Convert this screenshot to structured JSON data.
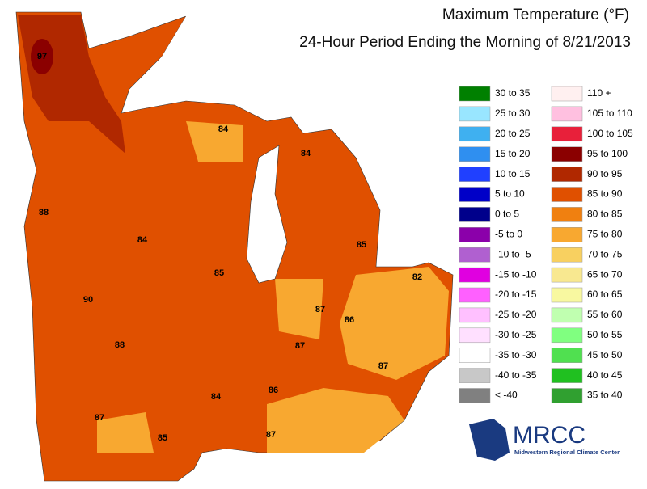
{
  "title": "Maximum Temperature (°F)",
  "subtitle": "24-Hour Period Ending the Morning of 8/21/2013",
  "legend": [
    {
      "label": "30 to 35",
      "color": "#008000"
    },
    {
      "label": "25 to 30",
      "color": "#99e6ff"
    },
    {
      "label": "20 to 25",
      "color": "#3fb0f0"
    },
    {
      "label": "15 to 20",
      "color": "#2f8ff0"
    },
    {
      "label": "10 to 15",
      "color": "#2040ff"
    },
    {
      "label": "5 to 10",
      "color": "#0000c8"
    },
    {
      "label": "0 to 5",
      "color": "#00008b"
    },
    {
      "label": "-5 to 0",
      "color": "#8b00aa"
    },
    {
      "label": "-10 to -5",
      "color": "#b060d0"
    },
    {
      "label": "-15 to -10",
      "color": "#e000e0"
    },
    {
      "label": "-20 to -15",
      "color": "#ff60ff"
    },
    {
      "label": "-25 to -20",
      "color": "#ffc0ff"
    },
    {
      "label": "-30 to -25",
      "color": "#ffe0ff"
    },
    {
      "label": "-35 to -30",
      "color": "#ffffff"
    },
    {
      "label": "-40 to -35",
      "color": "#c8c8c8"
    },
    {
      "label": "< -40",
      "color": "#808080"
    },
    {
      "label": "110 +",
      "color": "#fff0f0"
    },
    {
      "label": "105 to 110",
      "color": "#ffc0e0"
    },
    {
      "label": "100 to 105",
      "color": "#e8203a"
    },
    {
      "label": "95 to 100",
      "color": "#8b0000"
    },
    {
      "label": "90 to 95",
      "color": "#b02800"
    },
    {
      "label": "85 to 90",
      "color": "#e05000"
    },
    {
      "label": "80 to 85",
      "color": "#f08010"
    },
    {
      "label": "75 to 80",
      "color": "#f8a830"
    },
    {
      "label": "70 to 75",
      "color": "#f8d060"
    },
    {
      "label": "65 to 70",
      "color": "#f8e890"
    },
    {
      "label": "60 to 65",
      "color": "#f8f8a0"
    },
    {
      "label": "55 to 60",
      "color": "#c0ffb0"
    },
    {
      "label": "50 to 55",
      "color": "#80ff80"
    },
    {
      "label": "45 to 50",
      "color": "#50e050"
    },
    {
      "label": "40 to 45",
      "color": "#20c020"
    },
    {
      "label": "35 to 40",
      "color": "#30a030"
    }
  ],
  "map_labels": [
    "97",
    "84",
    "84",
    "88",
    "84",
    "85",
    "85",
    "82",
    "90",
    "87",
    "86",
    "88",
    "87",
    "87",
    "86",
    "84",
    "87",
    "85",
    "87"
  ],
  "logo": {
    "name": "MRCC",
    "subtitle": "Midwestern Regional Climate Center"
  }
}
